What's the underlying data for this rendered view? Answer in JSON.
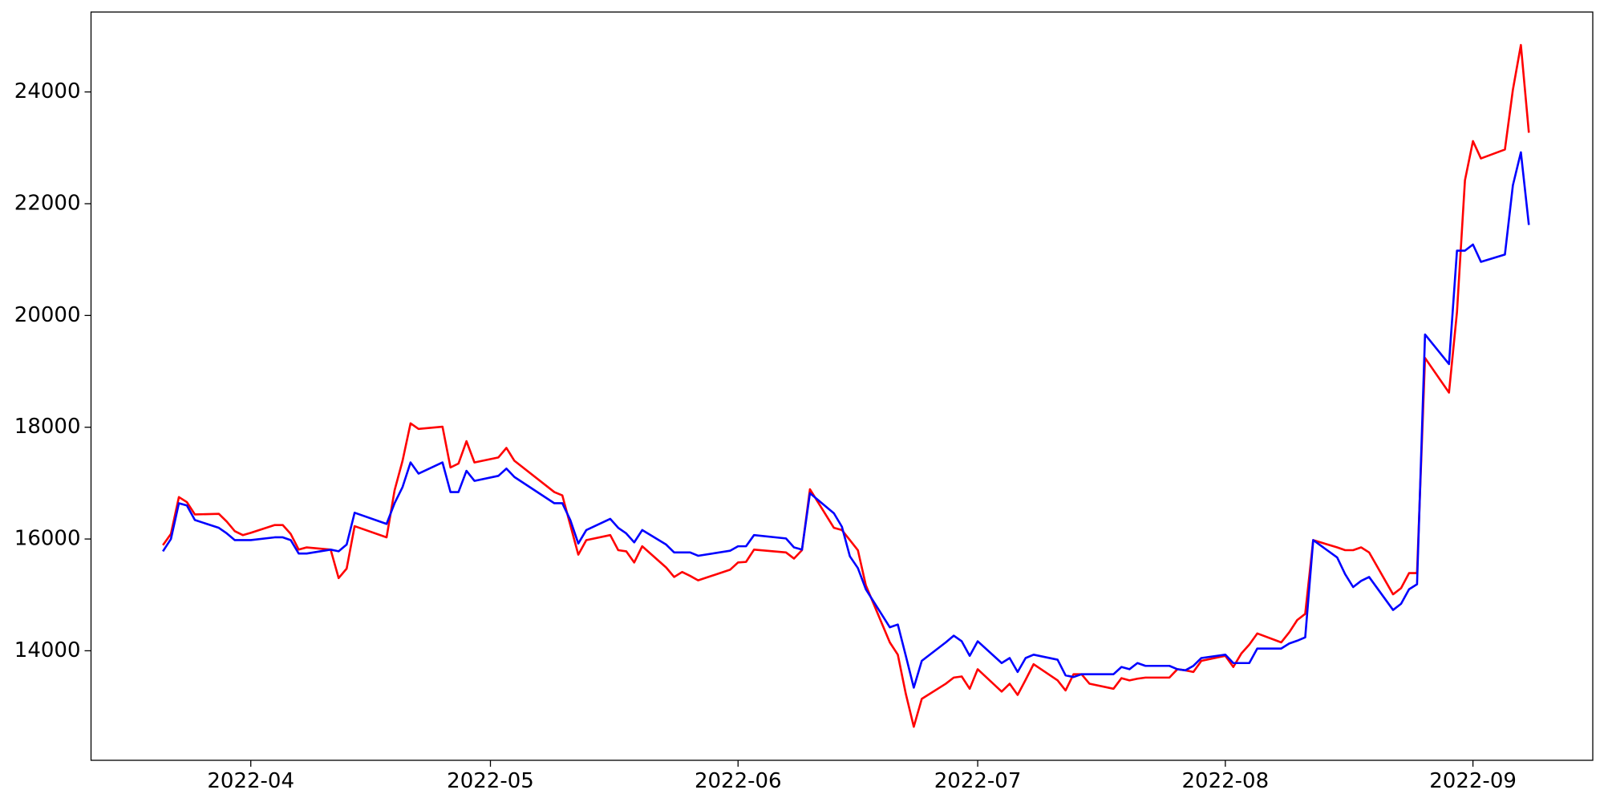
{
  "chart_data": {
    "type": "line",
    "x": [
      "2022-03-21",
      "2022-03-22",
      "2022-03-23",
      "2022-03-24",
      "2022-03-25",
      "2022-03-28",
      "2022-03-29",
      "2022-03-30",
      "2022-03-31",
      "2022-04-01",
      "2022-04-04",
      "2022-04-05",
      "2022-04-06",
      "2022-04-07",
      "2022-04-08",
      "2022-04-11",
      "2022-04-12",
      "2022-04-13",
      "2022-04-14",
      "2022-04-18",
      "2022-04-19",
      "2022-04-20",
      "2022-04-21",
      "2022-04-22",
      "2022-04-25",
      "2022-04-26",
      "2022-04-27",
      "2022-04-28",
      "2022-04-29",
      "2022-05-02",
      "2022-05-03",
      "2022-05-04",
      "2022-05-09",
      "2022-05-10",
      "2022-05-11",
      "2022-05-12",
      "2022-05-13",
      "2022-05-16",
      "2022-05-17",
      "2022-05-18",
      "2022-05-19",
      "2022-05-20",
      "2022-05-23",
      "2022-05-24",
      "2022-05-25",
      "2022-05-26",
      "2022-05-27",
      "2022-05-31",
      "2022-06-01",
      "2022-06-02",
      "2022-06-03",
      "2022-06-07",
      "2022-06-08",
      "2022-06-09",
      "2022-06-10",
      "2022-06-13",
      "2022-06-14",
      "2022-06-15",
      "2022-06-16",
      "2022-06-17",
      "2022-06-20",
      "2022-06-21",
      "2022-06-22",
      "2022-06-23",
      "2022-06-24",
      "2022-06-27",
      "2022-06-28",
      "2022-06-29",
      "2022-06-30",
      "2022-07-01",
      "2022-07-04",
      "2022-07-05",
      "2022-07-06",
      "2022-07-07",
      "2022-07-08",
      "2022-07-11",
      "2022-07-12",
      "2022-07-13",
      "2022-07-14",
      "2022-07-15",
      "2022-07-18",
      "2022-07-19",
      "2022-07-20",
      "2022-07-21",
      "2022-07-22",
      "2022-07-25",
      "2022-07-26",
      "2022-07-27",
      "2022-07-28",
      "2022-07-29",
      "2022-08-01",
      "2022-08-02",
      "2022-08-03",
      "2022-08-04",
      "2022-08-05",
      "2022-08-08",
      "2022-08-09",
      "2022-08-10",
      "2022-08-11",
      "2022-08-12",
      "2022-08-15",
      "2022-08-16",
      "2022-08-17",
      "2022-08-18",
      "2022-08-19",
      "2022-08-22",
      "2022-08-23",
      "2022-08-24",
      "2022-08-25",
      "2022-08-26",
      "2022-08-29",
      "2022-08-30",
      "2022-08-31",
      "2022-09-01",
      "2022-09-02",
      "2022-09-05",
      "2022-09-06",
      "2022-09-07",
      "2022-09-08"
    ],
    "series": [
      {
        "color": "red",
        "values": [
          15890,
          16090,
          16750,
          16660,
          16440,
          16450,
          16310,
          16140,
          16070,
          16110,
          16250,
          16250,
          16090,
          15810,
          15850,
          15810,
          15300,
          15470,
          16230,
          16030,
          16870,
          17400,
          18070,
          17970,
          18010,
          17280,
          17350,
          17750,
          17370,
          17460,
          17630,
          17400,
          16840,
          16780,
          16250,
          15720,
          15980,
          16070,
          15800,
          15780,
          15580,
          15870,
          15490,
          15320,
          15410,
          15340,
          15260,
          15450,
          15580,
          15590,
          15810,
          15760,
          15650,
          15800,
          16890,
          16200,
          16160,
          15980,
          15800,
          15170,
          14150,
          13930,
          13230,
          12640,
          13140,
          13410,
          13520,
          13540,
          13320,
          13670,
          13270,
          13410,
          13210,
          13480,
          13760,
          13470,
          13290,
          13580,
          13580,
          13410,
          13320,
          13510,
          13470,
          13500,
          13520,
          13520,
          13670,
          13650,
          13620,
          13820,
          13910,
          13710,
          13950,
          14110,
          14310,
          14150,
          14330,
          14550,
          14660,
          15980,
          15850,
          15800,
          15800,
          15850,
          15760,
          15010,
          15120,
          15390,
          15390,
          19240,
          18620,
          20060,
          22420,
          23120,
          22810,
          22970,
          24040,
          24840,
          23270
        ]
      },
      {
        "color": "blue",
        "values": [
          15780,
          16000,
          16640,
          16600,
          16340,
          16200,
          16100,
          15980,
          15980,
          15980,
          16030,
          16030,
          15980,
          15740,
          15740,
          15810,
          15780,
          15900,
          16470,
          16270,
          16640,
          16930,
          17370,
          17170,
          17370,
          16840,
          16840,
          17220,
          17040,
          17130,
          17260,
          17110,
          16640,
          16640,
          16340,
          15920,
          16160,
          16360,
          16200,
          16100,
          15940,
          16160,
          15900,
          15760,
          15760,
          15760,
          15700,
          15790,
          15870,
          15870,
          16070,
          16010,
          15850,
          15810,
          16820,
          16460,
          16220,
          15690,
          15480,
          15100,
          14420,
          14470,
          13910,
          13340,
          13820,
          14150,
          14270,
          14170,
          13910,
          14170,
          13780,
          13870,
          13620,
          13870,
          13930,
          13840,
          13560,
          13530,
          13580,
          13580,
          13580,
          13710,
          13670,
          13780,
          13730,
          13730,
          13670,
          13650,
          13730,
          13870,
          13930,
          13780,
          13780,
          13780,
          14040,
          14040,
          14130,
          14180,
          14240,
          15980,
          15670,
          15370,
          15140,
          15250,
          15320,
          14730,
          14840,
          15100,
          15190,
          19660,
          19130,
          21160,
          21160,
          21270,
          20960,
          21090,
          22330,
          22920,
          21620
        ]
      }
    ],
    "xlim": [
      "2022-03-12",
      "2022-09-16"
    ],
    "xticks": [
      {
        "value": "2022-04-01",
        "label": "2022-04"
      },
      {
        "value": "2022-05-01",
        "label": "2022-05"
      },
      {
        "value": "2022-06-01",
        "label": "2022-06"
      },
      {
        "value": "2022-07-01",
        "label": "2022-07"
      },
      {
        "value": "2022-08-01",
        "label": "2022-08"
      },
      {
        "value": "2022-09-01",
        "label": "2022-09"
      }
    ],
    "ylim": [
      12040,
      25430
    ],
    "yticks": [
      14000,
      16000,
      18000,
      20000,
      22000,
      24000
    ]
  }
}
